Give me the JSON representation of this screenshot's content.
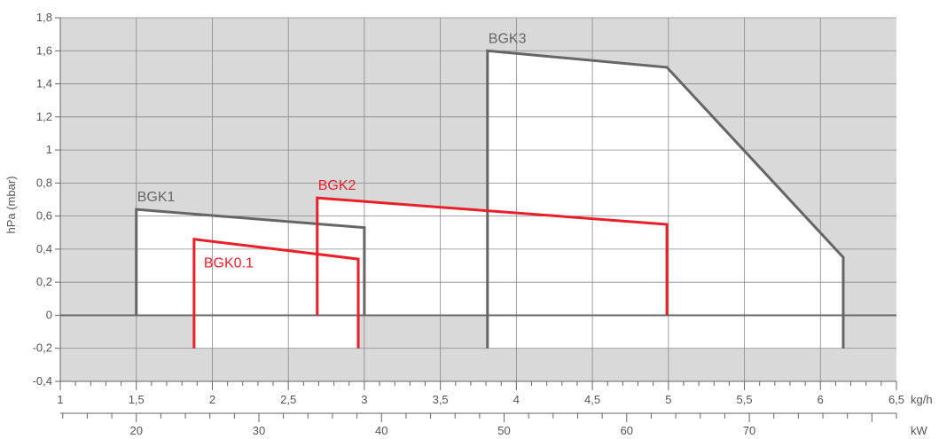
{
  "chart_data": {
    "type": "line",
    "title": "",
    "ylabel": "hPa (mbar)",
    "xlabel": "kg/h",
    "x_unit_label": "kg/h",
    "x2_unit_label": "kW",
    "xlim": [
      1,
      6.5
    ],
    "ylim": [
      -0.4,
      1.8
    ],
    "grid": true,
    "colors": {
      "plot_background": "#d9d9d9",
      "envelope_fill": "#ffffff",
      "grid": "#888888",
      "gray_series": "#666666",
      "red_series": "#e8202a"
    },
    "y_ticks": [
      {
        "value": -0.4,
        "label": "-0,4"
      },
      {
        "value": -0.2,
        "label": "-0,2"
      },
      {
        "value": 0,
        "label": "0"
      },
      {
        "value": 0.2,
        "label": "0,2"
      },
      {
        "value": 0.4,
        "label": "0,4"
      },
      {
        "value": 0.6,
        "label": "0,6"
      },
      {
        "value": 0.8,
        "label": "0,8"
      },
      {
        "value": 1.0,
        "label": "1"
      },
      {
        "value": 1.2,
        "label": "1,2"
      },
      {
        "value": 1.4,
        "label": "1,4"
      },
      {
        "value": 1.6,
        "label": "1,6"
      },
      {
        "value": 1.8,
        "label": "1,8"
      }
    ],
    "x_ticks": [
      {
        "value": 1,
        "label": "1"
      },
      {
        "value": 1.5,
        "label": "1,5"
      },
      {
        "value": 2,
        "label": "2"
      },
      {
        "value": 2.5,
        "label": "2,5"
      },
      {
        "value": 3,
        "label": "3"
      },
      {
        "value": 3.5,
        "label": "3,5"
      },
      {
        "value": 4,
        "label": "4"
      },
      {
        "value": 4.5,
        "label": "4,5"
      },
      {
        "value": 5,
        "label": "5"
      },
      {
        "value": 5.5,
        "label": "5,5"
      },
      {
        "value": 6,
        "label": "6"
      },
      {
        "value": 6.5,
        "label": "6,5"
      }
    ],
    "x_minor_step": 0.1,
    "x2_ticks": [
      {
        "kw": 20,
        "label": "20"
      },
      {
        "kw": 30,
        "label": "30"
      },
      {
        "kw": 40,
        "label": "40"
      },
      {
        "kw": 50,
        "label": "50"
      },
      {
        "kw": 60,
        "label": "60"
      },
      {
        "kw": 70,
        "label": "70"
      }
    ],
    "x2_minor_step_kw": 2,
    "x2_range_kw": [
      13.8,
      82
    ],
    "series": [
      {
        "name": "BGK3",
        "color": "#666666",
        "points": [
          [
            3.81,
            -0.2
          ],
          [
            3.81,
            1.6
          ],
          [
            4.99,
            1.5
          ],
          [
            6.15,
            0.35
          ],
          [
            6.15,
            -0.2
          ]
        ],
        "label_at": [
          3.81,
          1.6
        ]
      },
      {
        "name": "BGK1",
        "color": "#666666",
        "points": [
          [
            1.5,
            0.0
          ],
          [
            1.5,
            0.64
          ],
          [
            3.0,
            0.53
          ],
          [
            3.0,
            0.0
          ]
        ],
        "label_at": [
          1.5,
          0.64
        ]
      },
      {
        "name": "BGK2",
        "color": "#e8202a",
        "points": [
          [
            2.69,
            0.0
          ],
          [
            2.69,
            0.71
          ],
          [
            4.99,
            0.55
          ],
          [
            4.99,
            0.0
          ]
        ],
        "label_at": [
          2.69,
          0.71
        ]
      },
      {
        "name": "BGK0.1",
        "color": "#e8202a",
        "points": [
          [
            1.88,
            -0.2
          ],
          [
            1.88,
            0.46
          ],
          [
            2.96,
            0.34
          ],
          [
            2.96,
            -0.2
          ]
        ],
        "label_at": [
          1.88,
          0.46
        ]
      }
    ]
  }
}
